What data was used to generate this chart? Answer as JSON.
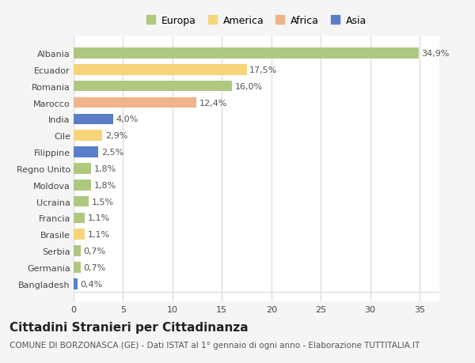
{
  "countries": [
    "Albania",
    "Ecuador",
    "Romania",
    "Marocco",
    "India",
    "Cile",
    "Filippine",
    "Regno Unito",
    "Moldova",
    "Ucraina",
    "Francia",
    "Brasile",
    "Serbia",
    "Germania",
    "Bangladesh"
  ],
  "values": [
    34.9,
    17.5,
    16.0,
    12.4,
    4.0,
    2.9,
    2.5,
    1.8,
    1.8,
    1.5,
    1.1,
    1.1,
    0.7,
    0.7,
    0.4
  ],
  "labels": [
    "34,9%",
    "17,5%",
    "16,0%",
    "12,4%",
    "4,0%",
    "2,9%",
    "2,5%",
    "1,8%",
    "1,8%",
    "1,5%",
    "1,1%",
    "1,1%",
    "0,7%",
    "0,7%",
    "0,4%"
  ],
  "colors": [
    "#aec880",
    "#f5d47a",
    "#aec880",
    "#f0b48a",
    "#5b7ec9",
    "#f5d47a",
    "#5b7ec9",
    "#aec880",
    "#aec880",
    "#aec880",
    "#aec880",
    "#f5d47a",
    "#aec880",
    "#aec880",
    "#5b7ec9"
  ],
  "legend_labels": [
    "Europa",
    "America",
    "Africa",
    "Asia"
  ],
  "legend_colors": [
    "#aec880",
    "#f5d47a",
    "#f0b48a",
    "#5b7ec9"
  ],
  "title": "Cittadini Stranieri per Cittadinanza",
  "subtitle": "COMUNE DI BORZONASCA (GE) - Dati ISTAT al 1° gennaio di ogni anno - Elaborazione TUTTITALIA.IT",
  "xlim": [
    0,
    37
  ],
  "xticks": [
    0,
    5,
    10,
    15,
    20,
    25,
    30,
    35
  ],
  "bg_color": "#f5f5f5",
  "plot_bg_color": "#ffffff",
  "grid_color": "#d8d8d8",
  "title_fontsize": 11,
  "subtitle_fontsize": 7.5,
  "label_fontsize": 8,
  "tick_fontsize": 8,
  "legend_fontsize": 9
}
